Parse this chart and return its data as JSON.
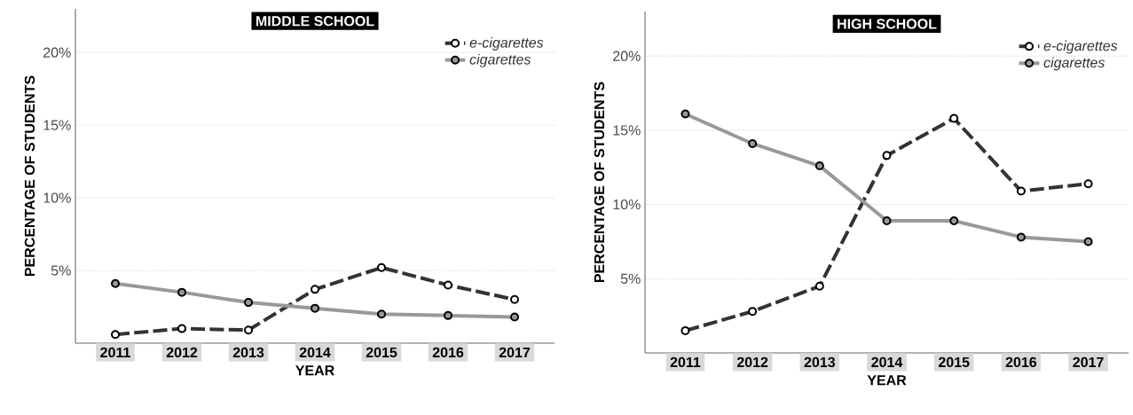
{
  "chart_data": [
    {
      "type": "line",
      "title": "MIDDLE SCHOOL",
      "xlabel": "YEAR",
      "ylabel": "PERCENTAGE OF STUDENTS",
      "categories": [
        "2011",
        "2012",
        "2013",
        "2014",
        "2015",
        "2016",
        "2017"
      ],
      "series": [
        {
          "name": "e-cigarettes",
          "color": "#333333",
          "line_style": "dashed",
          "values": [
            0.6,
            1.0,
            0.9,
            3.7,
            5.2,
            4.0,
            3.0
          ]
        },
        {
          "name": "cigarettes",
          "color": "#999999",
          "line_style": "solid",
          "values": [
            4.1,
            3.5,
            2.8,
            2.4,
            2.0,
            1.9,
            1.8
          ]
        }
      ],
      "ylim": [
        0,
        23
      ],
      "yticks": [
        {
          "value": 5,
          "label": "5%"
        },
        {
          "value": 10,
          "label": "10%"
        },
        {
          "value": 15,
          "label": "15%"
        },
        {
          "value": 20,
          "label": "20%"
        }
      ],
      "grid": "y",
      "legend": "top right",
      "marker": "circle"
    },
    {
      "type": "line",
      "title": "HIGH SCHOOL",
      "xlabel": "YEAR",
      "ylabel": "PERCENTAGE OF STUDENTS",
      "categories": [
        "2011",
        "2012",
        "2013",
        "2014",
        "2015",
        "2016",
        "2017"
      ],
      "series": [
        {
          "name": "e-cigarettes",
          "color": "#333333",
          "line_style": "dashed",
          "values": [
            1.5,
            2.8,
            4.5,
            13.3,
            15.8,
            10.9,
            11.4
          ]
        },
        {
          "name": "cigarettes",
          "color": "#999999",
          "line_style": "solid",
          "values": [
            16.1,
            14.1,
            12.6,
            8.9,
            8.9,
            7.8,
            7.5
          ]
        }
      ],
      "ylim": [
        0,
        23
      ],
      "yticks": [
        {
          "value": 5,
          "label": "5%"
        },
        {
          "value": 10,
          "label": "10%"
        },
        {
          "value": 15,
          "label": "15%"
        },
        {
          "value": 20,
          "label": "20%"
        }
      ],
      "grid": "y",
      "legend": "top right",
      "marker": "circle"
    }
  ]
}
